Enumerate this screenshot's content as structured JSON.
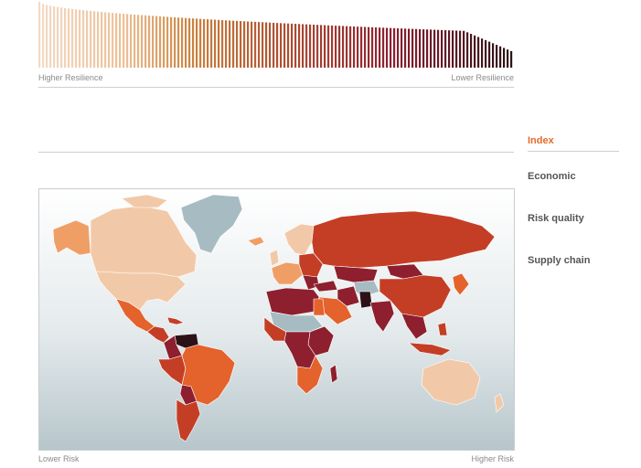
{
  "ranking_chart": {
    "left_label": "Higher Resilience",
    "right_label": "Lower Resilience",
    "bar_count": 130,
    "value_start": 100,
    "value_end": 14
  },
  "menu": {
    "items": [
      {
        "label": "Index",
        "active": true
      },
      {
        "label": "Economic",
        "active": false
      },
      {
        "label": "Risk quality",
        "active": false
      },
      {
        "label": "Supply chain",
        "active": false
      }
    ]
  },
  "map": {
    "legend_left": "Lower Risk",
    "legend_right": "Higher Risk",
    "colors": {
      "very_low": "#f2c9a8",
      "low": "#ef9f66",
      "medium": "#e4622c",
      "high": "#c43e25",
      "very_high": "#8e1f2e",
      "extreme": "#2c1217",
      "no_data": "#a7bcc2",
      "border": "#ffffff"
    }
  }
}
